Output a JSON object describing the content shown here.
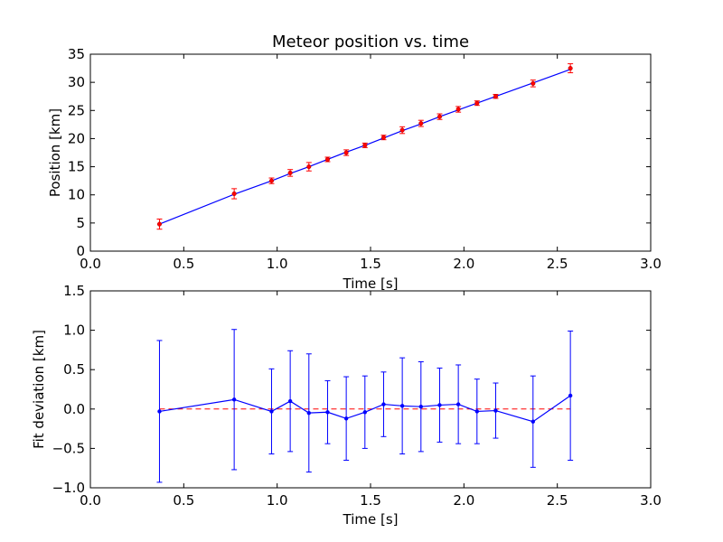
{
  "chart_data": [
    {
      "type": "scatter",
      "title": "Meteor position vs. time",
      "xlabel": "Time [s]",
      "ylabel": "Position [km]",
      "xlim": [
        0,
        3
      ],
      "ylim": [
        0,
        35
      ],
      "xticks": [
        "0.0",
        "0.5",
        "1.0",
        "1.5",
        "2.0",
        "2.5",
        "3.0"
      ],
      "yticks": [
        "0",
        "5",
        "10",
        "15",
        "20",
        "25",
        "30",
        "35"
      ],
      "grid": false,
      "colors": {
        "points": "#ff0000",
        "errorbars": "#ff0000",
        "fit": "#0000ff"
      },
      "series": [
        {
          "kind": "measurements",
          "x": [
            0.37,
            0.77,
            0.97,
            1.07,
            1.17,
            1.27,
            1.37,
            1.47,
            1.57,
            1.67,
            1.77,
            1.87,
            1.97,
            2.07,
            2.17,
            2.37,
            2.57
          ],
          "y": [
            4.8,
            10.2,
            12.5,
            13.9,
            15.0,
            16.3,
            17.5,
            18.8,
            20.2,
            21.5,
            22.7,
            23.9,
            25.2,
            26.3,
            27.5,
            29.8,
            32.5
          ],
          "yerr": [
            0.9,
            0.9,
            0.5,
            0.6,
            0.75,
            0.4,
            0.5,
            0.4,
            0.4,
            0.6,
            0.55,
            0.5,
            0.5,
            0.4,
            0.35,
            0.6,
            0.8
          ]
        },
        {
          "kind": "fit-line",
          "x": [
            0.37,
            0.77,
            0.97,
            1.07,
            1.17,
            1.27,
            1.37,
            1.47,
            1.57,
            1.67,
            1.77,
            1.87,
            1.97,
            2.07,
            2.17,
            2.37,
            2.57
          ],
          "y": [
            4.8,
            10.1,
            12.5,
            13.8,
            15.0,
            16.3,
            17.6,
            18.8,
            20.1,
            21.4,
            22.6,
            23.9,
            25.1,
            26.3,
            27.5,
            29.9,
            32.3
          ]
        }
      ]
    },
    {
      "type": "line",
      "xlabel": "Time [s]",
      "ylabel": "Fit deviation [km]",
      "xlim": [
        0,
        3
      ],
      "ylim": [
        -1.0,
        1.5
      ],
      "xticks": [
        "0.0",
        "0.5",
        "1.0",
        "1.5",
        "2.0",
        "2.5",
        "3.0"
      ],
      "yticks": [
        "−1.0",
        "−0.5",
        "0.0",
        "0.5",
        "1.0",
        "1.5"
      ],
      "grid": false,
      "colors": {
        "line": "#0000ff",
        "zero": "#ff0000"
      },
      "reference_line": {
        "y": 0.0,
        "style": "dashed"
      },
      "series": [
        {
          "kind": "deviations",
          "x": [
            0.37,
            0.77,
            0.97,
            1.07,
            1.17,
            1.27,
            1.37,
            1.47,
            1.57,
            1.67,
            1.77,
            1.87,
            1.97,
            2.07,
            2.17,
            2.37,
            2.57
          ],
          "y": [
            -0.03,
            0.12,
            -0.03,
            0.1,
            -0.05,
            -0.04,
            -0.12,
            -0.04,
            0.06,
            0.04,
            0.03,
            0.05,
            0.06,
            -0.03,
            -0.02,
            -0.16,
            0.17
          ],
          "yerr": [
            0.9,
            0.89,
            0.54,
            0.64,
            0.75,
            0.4,
            0.53,
            0.46,
            0.41,
            0.61,
            0.57,
            0.47,
            0.5,
            0.41,
            0.35,
            0.58,
            0.82
          ]
        }
      ]
    }
  ]
}
